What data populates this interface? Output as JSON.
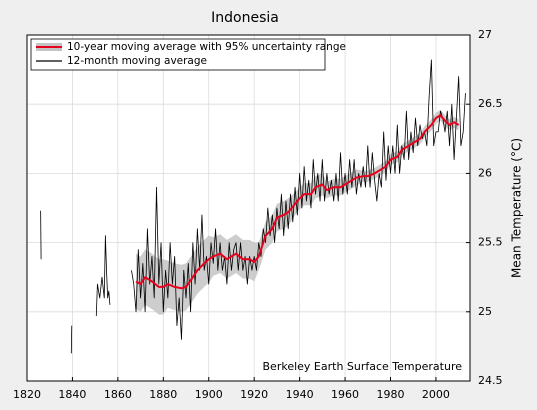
{
  "chart_data": {
    "type": "line",
    "title": "Indonesia",
    "y_label": "Mean Temperature (°C)",
    "annotation": "Berkeley Earth Surface Temperature",
    "xlim": [
      1820,
      2015
    ],
    "ylim": [
      24.5,
      27
    ],
    "xticks": [
      1820,
      1840,
      1860,
      1880,
      1900,
      1920,
      1940,
      1960,
      1980,
      2000
    ],
    "yticks": [
      24.5,
      25,
      25.5,
      26,
      26.5,
      27
    ],
    "grid": true,
    "legend": "upper left",
    "series": [
      {
        "name": "10-year moving average with 95% uncertainty range",
        "color": "#e8001c",
        "band_color": "#c4c4c4",
        "x": [
          1868,
          1870,
          1872,
          1875,
          1878,
          1880,
          1882,
          1885,
          1888,
          1890,
          1893,
          1895,
          1898,
          1900,
          1902,
          1905,
          1908,
          1910,
          1912,
          1915,
          1918,
          1920,
          1922,
          1925,
          1928,
          1930,
          1933,
          1935,
          1938,
          1940,
          1942,
          1945,
          1947,
          1950,
          1952,
          1955,
          1958,
          1960,
          1963,
          1965,
          1968,
          1970,
          1973,
          1975,
          1978,
          1980,
          1983,
          1985,
          1988,
          1990,
          1993,
          1995,
          1998,
          2000,
          2002,
          2004,
          2006,
          2008,
          2010
        ],
        "values": [
          25.22,
          25.2,
          25.25,
          25.22,
          25.18,
          25.18,
          25.2,
          25.18,
          25.17,
          25.18,
          25.25,
          25.3,
          25.35,
          25.38,
          25.4,
          25.42,
          25.38,
          25.4,
          25.42,
          25.38,
          25.38,
          25.36,
          25.4,
          25.55,
          25.6,
          25.68,
          25.7,
          25.72,
          25.78,
          25.82,
          25.85,
          25.85,
          25.9,
          25.92,
          25.88,
          25.9,
          25.9,
          25.92,
          25.95,
          25.97,
          25.98,
          25.98,
          26.0,
          26.02,
          26.05,
          26.1,
          26.12,
          26.17,
          26.2,
          26.22,
          26.25,
          26.3,
          26.35,
          26.4,
          26.42,
          26.38,
          26.35,
          26.37,
          26.35
        ],
        "lower": [
          25.02,
          25.0,
          25.05,
          25.02,
          24.98,
          24.98,
          25.03,
          25.01,
          25.0,
          25.01,
          25.08,
          25.13,
          25.18,
          25.21,
          25.26,
          25.28,
          25.24,
          25.26,
          25.28,
          25.24,
          25.24,
          25.22,
          25.3,
          25.45,
          25.5,
          25.58,
          25.6,
          25.62,
          25.7,
          25.74,
          25.77,
          25.77,
          25.82,
          25.84,
          25.82,
          25.84,
          25.84,
          25.86,
          25.89,
          25.91,
          25.94,
          25.94,
          25.96,
          25.98,
          26.01,
          26.06,
          26.08,
          26.13,
          26.16,
          26.18,
          26.21,
          26.26,
          26.31,
          26.36,
          26.38,
          26.34,
          26.31,
          26.33,
          26.31
        ],
        "upper": [
          25.42,
          25.4,
          25.45,
          25.42,
          25.38,
          25.38,
          25.37,
          25.35,
          25.34,
          25.35,
          25.42,
          25.47,
          25.52,
          25.55,
          25.54,
          25.56,
          25.52,
          25.54,
          25.56,
          25.52,
          25.52,
          25.5,
          25.5,
          25.65,
          25.7,
          25.78,
          25.8,
          25.82,
          25.86,
          25.9,
          25.93,
          25.93,
          25.98,
          26.0,
          25.94,
          25.96,
          25.96,
          25.98,
          26.01,
          26.03,
          26.02,
          26.02,
          26.04,
          26.06,
          26.09,
          26.14,
          26.16,
          26.21,
          26.24,
          26.26,
          26.29,
          26.34,
          26.39,
          26.44,
          26.46,
          26.42,
          26.39,
          26.41,
          26.39
        ]
      },
      {
        "name": "12-month moving average",
        "color": "#000000",
        "x": [
          1826,
          1826.2,
          null,
          1839.5,
          1839.7,
          null,
          1850.5,
          1851,
          1852,
          1853,
          1854,
          1854.5,
          1855,
          1855.5,
          1856,
          1856.5,
          null,
          1866,
          1867,
          1868,
          1869,
          1870,
          1871,
          1872,
          1873,
          1874,
          1875,
          1876,
          1877,
          1878,
          1879,
          1880,
          1881,
          1882,
          1883,
          1884,
          1885,
          1886,
          1887,
          1888,
          1889,
          1890,
          1891,
          1892,
          1893,
          1894,
          1895,
          1896,
          1897,
          1898,
          1899,
          1900,
          1901,
          1902,
          1903,
          1904,
          1905,
          1906,
          1907,
          1908,
          1909,
          1910,
          1911,
          1912,
          1913,
          1914,
          1915,
          1916,
          1917,
          1918,
          1919,
          1920,
          1921,
          1922,
          1923,
          1924,
          1925,
          1926,
          1927,
          1928,
          1929,
          1930,
          1931,
          1932,
          1933,
          1934,
          1935,
          1936,
          1937,
          1938,
          1939,
          1940,
          1941,
          1942,
          1943,
          1944,
          1945,
          1946,
          1947,
          1948,
          1949,
          1950,
          1951,
          1952,
          1953,
          1954,
          1955,
          1956,
          1957,
          1958,
          1959,
          1960,
          1961,
          1962,
          1963,
          1964,
          1965,
          1966,
          1967,
          1968,
          1969,
          1970,
          1971,
          1972,
          1973,
          1974,
          1975,
          1976,
          1977,
          1978,
          1979,
          1980,
          1981,
          1982,
          1983,
          1984,
          1985,
          1986,
          1987,
          1988,
          1989,
          1990,
          1991,
          1992,
          1993,
          1994,
          1995,
          1996,
          1997,
          1998,
          1999,
          2000,
          2001,
          2002,
          2003,
          2004,
          2005,
          2006,
          2007,
          2008,
          2009,
          2010,
          2011,
          2012,
          2013
        ],
        "values": [
          25.73,
          25.38,
          null,
          24.7,
          24.9,
          null,
          24.97,
          25.2,
          25.1,
          25.25,
          25.1,
          25.55,
          25.3,
          25.1,
          25.15,
          25.05,
          null,
          25.3,
          25.2,
          25.0,
          25.45,
          25.1,
          25.35,
          25.0,
          25.6,
          25.2,
          25.4,
          25.1,
          25.9,
          25.2,
          25.5,
          25.0,
          25.3,
          25.1,
          25.5,
          25.2,
          25.4,
          24.9,
          25.1,
          24.8,
          25.3,
          25.1,
          25.35,
          25.0,
          25.5,
          25.2,
          25.6,
          25.3,
          25.7,
          25.3,
          25.4,
          25.2,
          25.5,
          25.35,
          25.6,
          25.3,
          25.5,
          25.3,
          25.4,
          25.2,
          25.5,
          25.3,
          25.45,
          25.5,
          25.3,
          25.5,
          25.3,
          25.4,
          25.2,
          25.4,
          25.3,
          25.4,
          25.3,
          25.5,
          25.4,
          25.6,
          25.5,
          25.75,
          25.55,
          25.7,
          25.5,
          25.75,
          25.6,
          25.85,
          25.55,
          25.8,
          25.6,
          25.85,
          25.65,
          25.9,
          25.7,
          26.0,
          25.75,
          26.05,
          25.8,
          25.95,
          25.75,
          26.1,
          25.85,
          26.0,
          25.8,
          26.1,
          25.8,
          26.0,
          25.85,
          25.95,
          25.8,
          26.0,
          25.8,
          26.15,
          25.85,
          26.0,
          25.85,
          26.1,
          25.9,
          26.1,
          25.85,
          26.0,
          25.9,
          26.05,
          25.9,
          26.2,
          25.9,
          26.15,
          25.95,
          25.8,
          26.0,
          25.9,
          26.3,
          25.95,
          26.2,
          26.0,
          26.2,
          26.0,
          26.35,
          26.0,
          26.2,
          26.1,
          26.45,
          26.1,
          26.3,
          26.15,
          26.4,
          26.2,
          26.35,
          26.25,
          26.3,
          26.2,
          26.55,
          26.82,
          26.2,
          26.3,
          26.3,
          26.45,
          26.4,
          26.3,
          26.45,
          26.2,
          26.5,
          26.1,
          26.4,
          26.7,
          26.2,
          26.3,
          26.58
        ]
      }
    ]
  }
}
